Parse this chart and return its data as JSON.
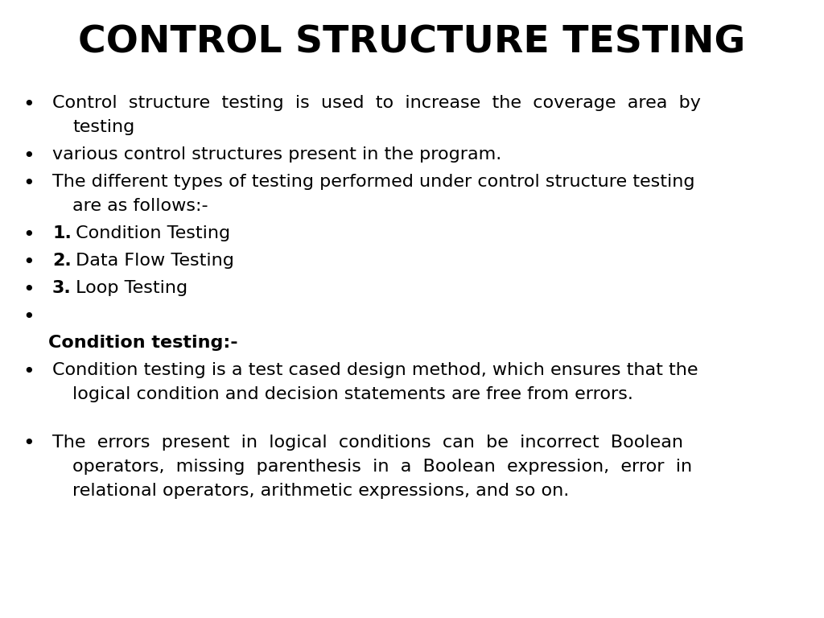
{
  "title": "CONTROL STRUCTURE TESTING",
  "title_fontsize": 34,
  "title_fontweight": "bold",
  "background_color": "#ffffff",
  "text_color": "#000000",
  "content_fontsize": 16,
  "items": [
    {
      "type": "bullet",
      "lines": [
        {
          "text": "Control  structure  testing  is  used  to  increase  the  coverage  area  by",
          "bold_prefix": ""
        },
        {
          "text": "testing",
          "indent": true
        }
      ]
    },
    {
      "type": "bullet",
      "lines": [
        {
          "text": "various control structures present in the program.",
          "bold_prefix": ""
        }
      ]
    },
    {
      "type": "bullet",
      "lines": [
        {
          "text": "The different types of testing performed under control structure testing",
          "bold_prefix": ""
        },
        {
          "text": "are as follows:-",
          "indent": true
        }
      ]
    },
    {
      "type": "bullet",
      "bold_prefix": "1.",
      "lines": [
        {
          "text": " Condition Testing"
        }
      ]
    },
    {
      "type": "bullet",
      "bold_prefix": "2.",
      "lines": [
        {
          "text": " Data Flow Testing"
        }
      ]
    },
    {
      "type": "bullet",
      "bold_prefix": "3.",
      "lines": [
        {
          "text": " Loop Testing"
        }
      ]
    },
    {
      "type": "bullet_empty"
    },
    {
      "type": "header",
      "text": "Condition testing:-"
    },
    {
      "type": "bullet",
      "lines": [
        {
          "text": "Condition testing is a test cased design method, which ensures that the",
          "bold_prefix": ""
        },
        {
          "text": "logical condition and decision statements are free from errors.",
          "indent": true
        }
      ]
    },
    {
      "type": "spacer"
    },
    {
      "type": "bullet",
      "lines": [
        {
          "text": "The  errors  present  in  logical  conditions  can  be  incorrect  Boolean",
          "bold_prefix": ""
        },
        {
          "text": "operators,  missing  parenthesis  in  a  Boolean  expression,  error  in",
          "indent": true
        },
        {
          "text": "relational operators, arithmetic expressions, and so on.",
          "indent": true
        }
      ]
    }
  ]
}
